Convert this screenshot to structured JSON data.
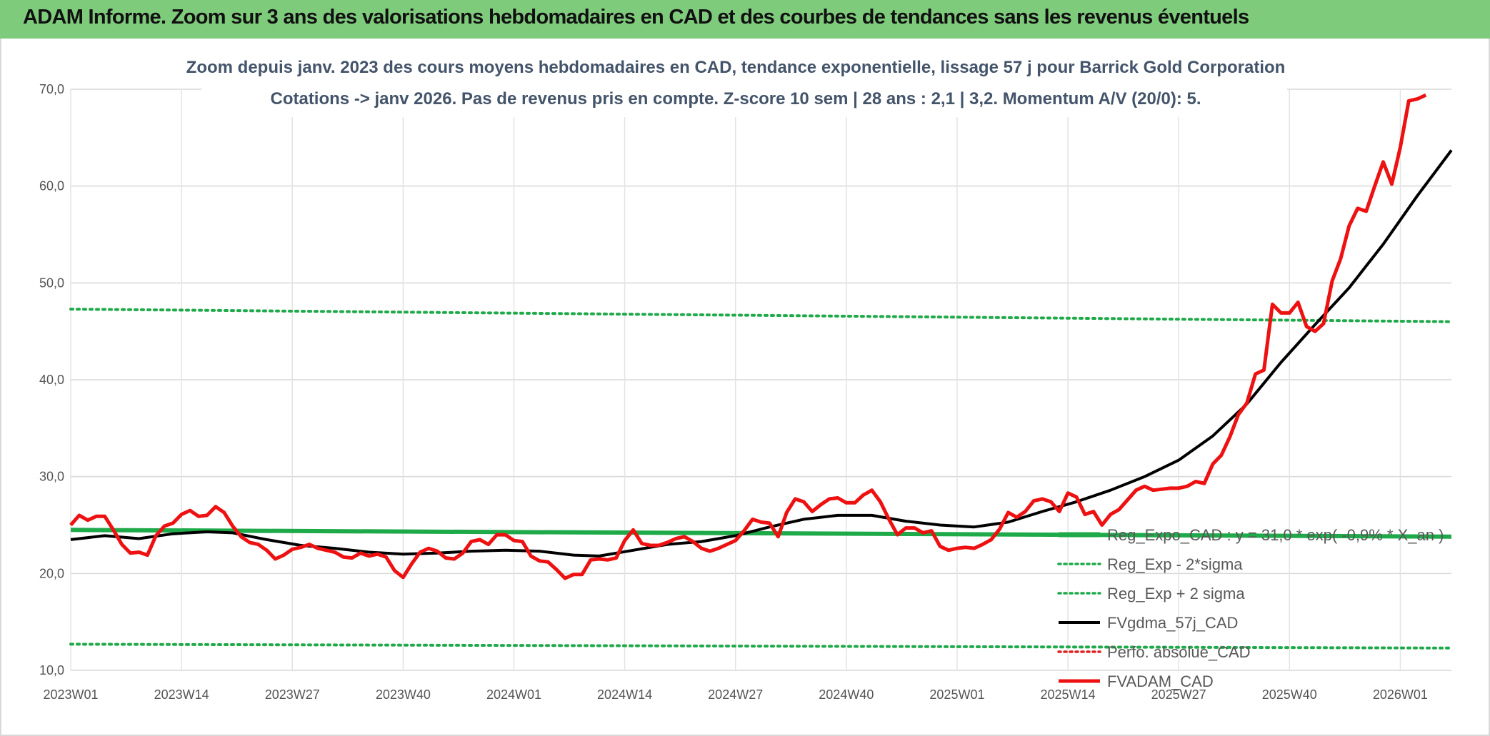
{
  "banner": {
    "title": "ADAM Informe. Zoom sur 3 ans des valorisations hebdomadaires en CAD et des courbes de tendances sans les revenus éventuels"
  },
  "chart_data": {
    "type": "line",
    "title_line1": "Zoom depuis janv. 2023 des cours moyens hebdomadaires en CAD, tendance exponentielle, lissage 57 j pour Barrick Gold Corporation",
    "title_line2": "Cotations -> janv 2026. Pas de revenus pris en compte. Z-score 10 sem | 28 ans : 2,1 | 3,2. Momentum A/V (20/0): 5.",
    "ylim": [
      10,
      70
    ],
    "yticks": [
      "10,0",
      "20,0",
      "30,0",
      "40,0",
      "50,0",
      "60,0",
      "70,0"
    ],
    "ytick_values": [
      10,
      20,
      30,
      40,
      50,
      60,
      70
    ],
    "x_range_weeks": [
      0,
      162
    ],
    "xticks": [
      {
        "week": 0,
        "label": "2023W01"
      },
      {
        "week": 13,
        "label": "2023W14"
      },
      {
        "week": 26,
        "label": "2023W27"
      },
      {
        "week": 39,
        "label": "2023W40"
      },
      {
        "week": 52,
        "label": "2024W01"
      },
      {
        "week": 65,
        "label": "2024W14"
      },
      {
        "week": 78,
        "label": "2024W27"
      },
      {
        "week": 91,
        "label": "2024W40"
      },
      {
        "week": 104,
        "label": "2025W01"
      },
      {
        "week": 117,
        "label": "2025W14"
      },
      {
        "week": 130,
        "label": "2025W27"
      },
      {
        "week": 143,
        "label": "2025W40"
      },
      {
        "week": 156,
        "label": "2026W01"
      }
    ],
    "grid": "both",
    "legend_position": "bottom-right",
    "series": [
      {
        "name": "Reg_Expo_CAD : y = 31,0 * exp( -0,9% *  X_an )",
        "color": "#1faa4a",
        "style": "solid-thick",
        "points": [
          [
            0,
            24.5
          ],
          [
            162,
            23.8
          ]
        ]
      },
      {
        "name": "Reg_Exp - 2*sigma",
        "color": "#1faa4a",
        "style": "dotted",
        "points": [
          [
            0,
            12.7
          ],
          [
            162,
            12.3
          ]
        ]
      },
      {
        "name": "Reg_Exp + 2 sigma",
        "color": "#1faa4a",
        "style": "dotted",
        "points": [
          [
            0,
            47.3
          ],
          [
            162,
            46.0
          ]
        ]
      },
      {
        "name": "FVgdma_57j_CAD",
        "color": "#000000",
        "style": "solid",
        "points": [
          [
            0,
            23.5
          ],
          [
            4,
            23.9
          ],
          [
            8,
            23.6
          ],
          [
            12,
            24.1
          ],
          [
            16,
            24.3
          ],
          [
            19,
            24.2
          ],
          [
            23,
            23.5
          ],
          [
            27,
            22.9
          ],
          [
            31,
            22.6
          ],
          [
            35,
            22.2
          ],
          [
            39,
            22.0
          ],
          [
            43,
            22.1
          ],
          [
            47,
            22.3
          ],
          [
            51,
            22.4
          ],
          [
            55,
            22.3
          ],
          [
            59,
            21.9
          ],
          [
            62,
            21.8
          ],
          [
            66,
            22.4
          ],
          [
            70,
            23.0
          ],
          [
            74,
            23.3
          ],
          [
            78,
            23.9
          ],
          [
            82,
            24.8
          ],
          [
            86,
            25.6
          ],
          [
            90,
            26.0
          ],
          [
            94,
            26.0
          ],
          [
            98,
            25.4
          ],
          [
            102,
            25.0
          ],
          [
            106,
            24.8
          ],
          [
            110,
            25.3
          ],
          [
            114,
            26.4
          ],
          [
            118,
            27.4
          ],
          [
            122,
            28.6
          ],
          [
            126,
            30.0
          ],
          [
            130,
            31.7
          ],
          [
            134,
            34.2
          ],
          [
            138,
            37.5
          ],
          [
            142,
            41.8
          ],
          [
            146,
            45.7
          ],
          [
            150,
            49.5
          ],
          [
            154,
            54.0
          ],
          [
            158,
            59.0
          ],
          [
            162,
            63.7
          ]
        ]
      },
      {
        "name": "Perfo. absolue_CAD",
        "color": "#e02020",
        "style": "dotted",
        "points": []
      },
      {
        "name": "FVADAM_CAD",
        "color": "#ee1111",
        "style": "solid-thick",
        "points": [
          [
            0,
            25.0
          ],
          [
            1,
            26.0
          ],
          [
            2,
            25.5
          ],
          [
            3,
            25.9
          ],
          [
            4,
            25.9
          ],
          [
            5,
            24.5
          ],
          [
            6,
            23.0
          ],
          [
            7,
            22.1
          ],
          [
            8,
            22.2
          ],
          [
            9,
            21.9
          ],
          [
            10,
            23.9
          ],
          [
            11,
            24.9
          ],
          [
            12,
            25.2
          ],
          [
            13,
            26.1
          ],
          [
            14,
            26.5
          ],
          [
            15,
            25.9
          ],
          [
            16,
            26.0
          ],
          [
            17,
            26.9
          ],
          [
            18,
            26.3
          ],
          [
            19,
            24.9
          ],
          [
            20,
            23.8
          ],
          [
            21,
            23.2
          ],
          [
            22,
            23.0
          ],
          [
            23,
            22.4
          ],
          [
            24,
            21.5
          ],
          [
            25,
            21.9
          ],
          [
            26,
            22.5
          ],
          [
            27,
            22.7
          ],
          [
            28,
            23.0
          ],
          [
            29,
            22.6
          ],
          [
            30,
            22.4
          ],
          [
            31,
            22.2
          ],
          [
            32,
            21.7
          ],
          [
            33,
            21.6
          ],
          [
            34,
            22.1
          ],
          [
            35,
            21.8
          ],
          [
            36,
            22.0
          ],
          [
            37,
            21.7
          ],
          [
            38,
            20.3
          ],
          [
            39,
            19.6
          ],
          [
            40,
            21.0
          ],
          [
            41,
            22.2
          ],
          [
            42,
            22.6
          ],
          [
            43,
            22.3
          ],
          [
            44,
            21.6
          ],
          [
            45,
            21.5
          ],
          [
            46,
            22.1
          ],
          [
            47,
            23.3
          ],
          [
            48,
            23.5
          ],
          [
            49,
            23.0
          ],
          [
            50,
            24.0
          ],
          [
            51,
            24.0
          ],
          [
            52,
            23.4
          ],
          [
            53,
            23.3
          ],
          [
            54,
            21.8
          ],
          [
            55,
            21.3
          ],
          [
            56,
            21.2
          ],
          [
            57,
            20.4
          ],
          [
            58,
            19.5
          ],
          [
            59,
            19.9
          ],
          [
            60,
            19.9
          ],
          [
            61,
            21.4
          ],
          [
            62,
            21.5
          ],
          [
            63,
            21.4
          ],
          [
            64,
            21.6
          ],
          [
            65,
            23.4
          ],
          [
            66,
            24.5
          ],
          [
            67,
            23.1
          ],
          [
            68,
            22.9
          ],
          [
            69,
            22.9
          ],
          [
            70,
            23.2
          ],
          [
            71,
            23.6
          ],
          [
            72,
            23.8
          ],
          [
            73,
            23.3
          ],
          [
            74,
            22.6
          ],
          [
            75,
            22.3
          ],
          [
            76,
            22.6
          ],
          [
            77,
            23.0
          ],
          [
            78,
            23.4
          ],
          [
            79,
            24.4
          ],
          [
            80,
            25.6
          ],
          [
            81,
            25.3
          ],
          [
            82,
            25.2
          ],
          [
            83,
            23.8
          ],
          [
            84,
            26.3
          ],
          [
            85,
            27.7
          ],
          [
            86,
            27.4
          ],
          [
            87,
            26.4
          ],
          [
            88,
            27.1
          ],
          [
            89,
            27.7
          ],
          [
            90,
            27.8
          ],
          [
            91,
            27.3
          ],
          [
            92,
            27.3
          ],
          [
            93,
            28.1
          ],
          [
            94,
            28.6
          ],
          [
            95,
            27.4
          ],
          [
            96,
            25.6
          ],
          [
            97,
            24.0
          ],
          [
            98,
            24.7
          ],
          [
            99,
            24.7
          ],
          [
            100,
            24.2
          ],
          [
            101,
            24.4
          ],
          [
            102,
            22.8
          ],
          [
            103,
            22.4
          ],
          [
            104,
            22.6
          ],
          [
            105,
            22.7
          ],
          [
            106,
            22.6
          ],
          [
            107,
            23.0
          ],
          [
            108,
            23.5
          ],
          [
            109,
            24.6
          ],
          [
            110,
            26.3
          ],
          [
            111,
            25.8
          ],
          [
            112,
            26.4
          ],
          [
            113,
            27.5
          ],
          [
            114,
            27.7
          ],
          [
            115,
            27.4
          ],
          [
            116,
            26.4
          ],
          [
            117,
            28.3
          ],
          [
            118,
            27.9
          ],
          [
            119,
            26.1
          ],
          [
            120,
            26.4
          ],
          [
            121,
            25.0
          ],
          [
            122,
            26.1
          ],
          [
            123,
            26.6
          ],
          [
            124,
            27.6
          ],
          [
            125,
            28.6
          ],
          [
            126,
            29.0
          ],
          [
            127,
            28.6
          ],
          [
            128,
            28.7
          ],
          [
            129,
            28.8
          ],
          [
            130,
            28.8
          ],
          [
            131,
            29.0
          ],
          [
            132,
            29.5
          ],
          [
            133,
            29.3
          ],
          [
            134,
            31.3
          ],
          [
            135,
            32.2
          ],
          [
            136,
            34.1
          ],
          [
            137,
            36.4
          ],
          [
            138,
            37.6
          ],
          [
            139,
            40.6
          ],
          [
            140,
            41.0
          ],
          [
            141,
            47.8
          ],
          [
            142,
            46.9
          ],
          [
            143,
            46.9
          ],
          [
            144,
            48.0
          ],
          [
            145,
            45.5
          ],
          [
            146,
            45.0
          ],
          [
            147,
            45.8
          ],
          [
            148,
            50.2
          ],
          [
            149,
            52.5
          ],
          [
            150,
            55.9
          ],
          [
            151,
            57.7
          ],
          [
            152,
            57.4
          ],
          [
            153,
            60.0
          ],
          [
            154,
            62.5
          ],
          [
            155,
            60.2
          ],
          [
            156,
            64.0
          ],
          [
            157,
            68.8
          ],
          [
            158,
            69.0
          ],
          [
            159,
            69.4
          ]
        ]
      }
    ]
  }
}
